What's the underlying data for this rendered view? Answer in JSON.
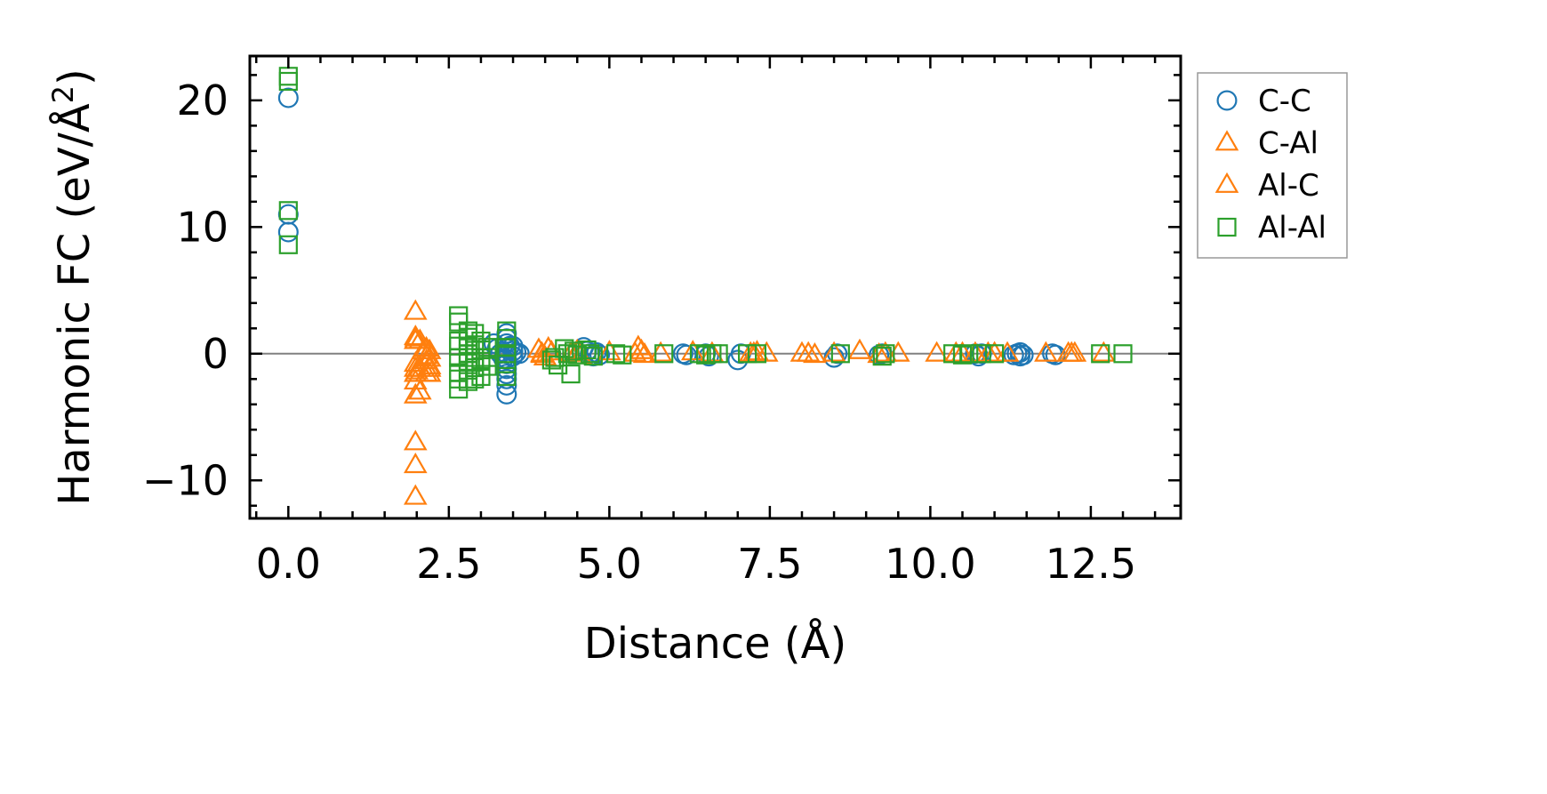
{
  "chart_data": {
    "type": "scatter",
    "xlabel": "Distance (Å)",
    "ylabel_main": "Harmonic FC (eV/Å",
    "ylabel_sup": "2",
    "ylabel_end": ")",
    "xlim": [
      -0.6,
      13.9
    ],
    "ylim": [
      -13.0,
      23.5
    ],
    "xticks": [
      0.0,
      2.5,
      5.0,
      7.5,
      10.0,
      12.5
    ],
    "xtick_labels": [
      "0.0",
      "2.5",
      "5.0",
      "7.5",
      "10.0",
      "12.5"
    ],
    "yticks": [
      -10,
      0,
      10,
      20
    ],
    "ytick_labels": [
      "−10",
      "0",
      "10",
      "20"
    ],
    "zero_line": 0,
    "legend_position": "outside-right",
    "series": [
      {
        "name": "C-C",
        "marker": "circle",
        "color": "#1f77b4",
        "points": [
          [
            0,
            20.2
          ],
          [
            0,
            11.0
          ],
          [
            0,
            9.6
          ],
          [
            3.2,
            0.8
          ],
          [
            3.25,
            0.4
          ],
          [
            3.3,
            0.0
          ],
          [
            3.35,
            -0.4
          ],
          [
            3.4,
            1.6
          ],
          [
            3.4,
            1.2
          ],
          [
            3.4,
            0.8
          ],
          [
            3.4,
            0.4
          ],
          [
            3.4,
            0.0
          ],
          [
            3.4,
            -0.4
          ],
          [
            3.4,
            -0.8
          ],
          [
            3.4,
            -1.2
          ],
          [
            3.4,
            -1.6
          ],
          [
            3.4,
            -2.0
          ],
          [
            3.4,
            -2.5
          ],
          [
            3.4,
            -3.2
          ],
          [
            3.45,
            0.6
          ],
          [
            3.5,
            0.2
          ],
          [
            3.5,
            0.6
          ],
          [
            3.5,
            -0.2
          ],
          [
            3.55,
            0.1
          ],
          [
            3.6,
            0.0
          ],
          [
            4.6,
            0.5
          ],
          [
            4.65,
            0.2
          ],
          [
            4.7,
            0.0
          ],
          [
            4.75,
            -0.2
          ],
          [
            4.8,
            0.1
          ],
          [
            4.85,
            -0.1
          ],
          [
            6.15,
            0.0
          ],
          [
            6.2,
            -0.1
          ],
          [
            6.5,
            0.0
          ],
          [
            6.55,
            -0.2
          ],
          [
            7.0,
            -0.5
          ],
          [
            7.05,
            0.0
          ],
          [
            8.5,
            -0.3
          ],
          [
            8.55,
            0.0
          ],
          [
            9.2,
            -0.1
          ],
          [
            9.25,
            0.0
          ],
          [
            10.7,
            0.0
          ],
          [
            10.75,
            -0.2
          ],
          [
            10.8,
            0.0
          ],
          [
            11.3,
            -0.1
          ],
          [
            11.35,
            0.0
          ],
          [
            11.4,
            -0.2
          ],
          [
            11.4,
            0.1
          ],
          [
            11.45,
            -0.1
          ],
          [
            11.9,
            0.0
          ],
          [
            11.95,
            -0.1
          ]
        ]
      },
      {
        "name": "C-Al",
        "marker": "triangle",
        "color": "#ff7f0e",
        "points": [
          [
            1.98,
            3.3
          ],
          [
            1.98,
            1.3
          ],
          [
            1.98,
            1.0
          ],
          [
            1.98,
            -0.8
          ],
          [
            1.98,
            -1.2
          ],
          [
            1.98,
            -1.6
          ],
          [
            1.98,
            -2.2
          ],
          [
            1.98,
            -3.3
          ],
          [
            1.98,
            -7.0
          ],
          [
            1.98,
            -8.8
          ],
          [
            1.98,
            -11.3
          ],
          [
            2.05,
            1.0
          ],
          [
            2.05,
            -1.2
          ],
          [
            2.05,
            -3.0
          ],
          [
            2.15,
            0.4
          ],
          [
            2.15,
            -0.2
          ],
          [
            2.15,
            -0.6
          ],
          [
            2.15,
            -1.6
          ],
          [
            2.2,
            0.2
          ],
          [
            2.2,
            -0.4
          ],
          [
            2.2,
            -1.0
          ],
          [
            2.2,
            -1.6
          ],
          [
            3.9,
            0.3
          ],
          [
            3.95,
            0.0
          ],
          [
            4.0,
            -0.3
          ],
          [
            4.05,
            0.4
          ],
          [
            4.1,
            0.1
          ],
          [
            4.4,
            0.0
          ],
          [
            4.5,
            0.2
          ],
          [
            4.55,
            -0.2
          ],
          [
            5.0,
            0.1
          ],
          [
            5.45,
            0.5
          ],
          [
            5.5,
            0.2
          ],
          [
            5.55,
            -0.1
          ],
          [
            5.8,
            0.0
          ],
          [
            6.3,
            0.1
          ],
          [
            6.6,
            0.0
          ],
          [
            7.2,
            0.0
          ],
          [
            7.3,
            0.1
          ],
          [
            7.45,
            0.0
          ],
          [
            8.0,
            0.0
          ],
          [
            8.2,
            -0.1
          ],
          [
            8.5,
            0.0
          ],
          [
            8.9,
            0.2
          ],
          [
            9.2,
            -0.1
          ],
          [
            9.5,
            0.0
          ],
          [
            10.1,
            0.0
          ],
          [
            10.5,
            0.0
          ],
          [
            10.7,
            0.0
          ],
          [
            10.9,
            0.0
          ],
          [
            11.0,
            0.0
          ],
          [
            11.2,
            0.0
          ],
          [
            11.8,
            0.0
          ],
          [
            12.15,
            0.0
          ],
          [
            12.25,
            0.0
          ],
          [
            12.7,
            0.0
          ]
        ]
      },
      {
        "name": "Al-C",
        "marker": "triangle",
        "color": "#ff7f0e",
        "points": [
          [
            1.99,
            1.2
          ],
          [
            2.0,
            -1.4
          ],
          [
            2.1,
            0.2
          ],
          [
            2.2,
            -1.2
          ],
          [
            3.95,
            -0.1
          ],
          [
            4.5,
            0.1
          ],
          [
            5.4,
            0.0
          ],
          [
            7.25,
            0.0
          ],
          [
            8.1,
            0.0
          ],
          [
            9.3,
            0.0
          ],
          [
            10.4,
            0.0
          ],
          [
            11.0,
            0.0
          ],
          [
            12.2,
            0.0
          ]
        ]
      },
      {
        "name": "Al-Al",
        "marker": "square",
        "color": "#2ca02c",
        "points": [
          [
            0,
            21.9
          ],
          [
            0,
            21.5
          ],
          [
            0,
            11.3
          ],
          [
            0,
            8.6
          ],
          [
            2.65,
            3.0
          ],
          [
            2.65,
            2.5
          ],
          [
            2.65,
            1.0
          ],
          [
            2.65,
            0.6
          ],
          [
            2.65,
            -0.3
          ],
          [
            2.65,
            -1.5
          ],
          [
            2.65,
            -2.0
          ],
          [
            2.65,
            -2.8
          ],
          [
            2.8,
            1.8
          ],
          [
            2.8,
            1.3
          ],
          [
            2.8,
            0.6
          ],
          [
            2.8,
            0.0
          ],
          [
            2.8,
            -0.6
          ],
          [
            2.8,
            -1.3
          ],
          [
            2.8,
            -2.2
          ],
          [
            2.9,
            1.6
          ],
          [
            2.9,
            0.7
          ],
          [
            2.9,
            -0.3
          ],
          [
            2.9,
            -1.1
          ],
          [
            2.9,
            -2.0
          ],
          [
            3.0,
            1.0
          ],
          [
            3.0,
            0.3
          ],
          [
            3.0,
            -0.6
          ],
          [
            3.0,
            -1.8
          ],
          [
            3.1,
            0.5
          ],
          [
            3.1,
            -0.3
          ],
          [
            3.1,
            -1.0
          ],
          [
            3.4,
            1.8
          ],
          [
            3.4,
            1.2
          ],
          [
            3.4,
            0.5
          ],
          [
            3.4,
            0.0
          ],
          [
            3.4,
            -0.8
          ],
          [
            3.4,
            -1.8
          ],
          [
            4.1,
            -0.5
          ],
          [
            4.15,
            -0.3
          ],
          [
            4.2,
            -0.9
          ],
          [
            4.3,
            0.4
          ],
          [
            4.35,
            0.0
          ],
          [
            4.4,
            -1.6
          ],
          [
            4.45,
            0.2
          ],
          [
            4.5,
            -0.1
          ],
          [
            4.65,
            0.3
          ],
          [
            4.7,
            0.0
          ],
          [
            4.75,
            -0.2
          ],
          [
            5.1,
            0.0
          ],
          [
            5.2,
            -0.1
          ],
          [
            5.85,
            0.0
          ],
          [
            6.4,
            0.0
          ],
          [
            6.5,
            -0.1
          ],
          [
            6.6,
            0.0
          ],
          [
            6.7,
            0.0
          ],
          [
            7.15,
            0.0
          ],
          [
            7.3,
            0.0
          ],
          [
            8.6,
            0.0
          ],
          [
            9.25,
            -0.2
          ],
          [
            9.3,
            0.0
          ],
          [
            10.35,
            0.0
          ],
          [
            10.5,
            -0.1
          ],
          [
            10.6,
            0.0
          ],
          [
            10.8,
            0.0
          ],
          [
            11.0,
            0.0
          ],
          [
            12.65,
            0.0
          ],
          [
            13.0,
            0.0
          ]
        ]
      }
    ]
  }
}
